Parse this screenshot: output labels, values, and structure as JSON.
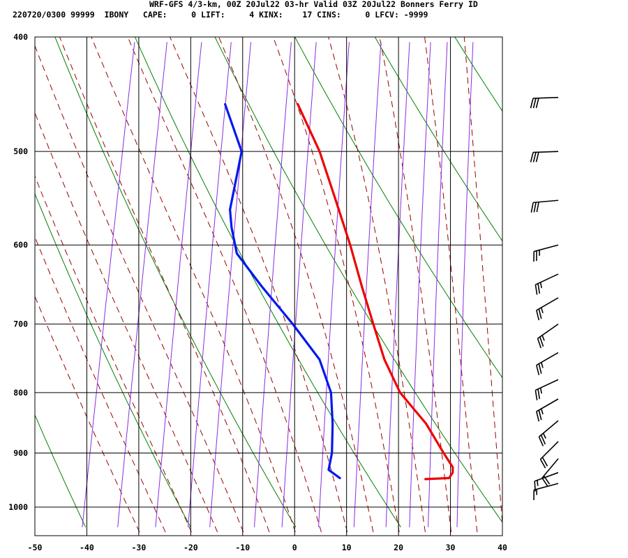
{
  "header": {
    "title": "WRF-GFS 4/3-km, 00Z 20Jul22 03-hr Valid 03Z 20Jul22 Bonners Ferry ID",
    "indices": "220720/0300 99999  IBONY   CAPE:     0 LIFT:     4 KINX:    17 CINS:     0 LFCV: -9999"
  },
  "colors": {
    "temperature": "#ee0000",
    "dewpoint": "#0018ee",
    "isotherm": "#000000",
    "dry_adiabat": "#008000",
    "moist_adiabat": "#990000",
    "mixing_ratio": "#8a2be2",
    "barb": "#000000"
  },
  "chart_data": {
    "type": "skew-t",
    "pressure_ticks": [
      400,
      500,
      600,
      700,
      800,
      900,
      1000
    ],
    "temp_ticks": [
      -50,
      -40,
      -30,
      -20,
      -10,
      0,
      10,
      20,
      30,
      40
    ],
    "xlim": [
      -50,
      40
    ],
    "ylim": [
      1040,
      400
    ],
    "y_scale": "log",
    "temperature": [
      {
        "p": 456,
        "t": -16.0
      },
      {
        "p": 500,
        "t": -10.0
      },
      {
        "p": 550,
        "t": -5.0
      },
      {
        "p": 600,
        "t": -0.5
      },
      {
        "p": 650,
        "t": 3.3
      },
      {
        "p": 700,
        "t": 7.0
      },
      {
        "p": 750,
        "t": 10.5
      },
      {
        "p": 800,
        "t": 14.8
      },
      {
        "p": 850,
        "t": 21.0
      },
      {
        "p": 900,
        "t": 25.5
      },
      {
        "p": 925,
        "t": 27.8
      },
      {
        "p": 935,
        "t": 28.0
      },
      {
        "p": 945,
        "t": 27.5
      },
      {
        "p": 947,
        "t": 23.0
      }
    ],
    "dewpoint": [
      {
        "p": 456,
        "t": -30.0
      },
      {
        "p": 500,
        "t": -25.0
      },
      {
        "p": 510,
        "t": -25.0
      },
      {
        "p": 560,
        "t": -25.0
      },
      {
        "p": 580,
        "t": -24.0
      },
      {
        "p": 610,
        "t": -22.0
      },
      {
        "p": 650,
        "t": -16.0
      },
      {
        "p": 700,
        "t": -8.5
      },
      {
        "p": 750,
        "t": -2.0
      },
      {
        "p": 800,
        "t": 1.5
      },
      {
        "p": 850,
        "t": 3.0
      },
      {
        "p": 900,
        "t": 4.0
      },
      {
        "p": 930,
        "t": 4.0
      },
      {
        "p": 945,
        "t": 6.5
      }
    ],
    "wind": [
      {
        "p": 450,
        "dir": 268,
        "spd": 30
      },
      {
        "p": 500,
        "dir": 268,
        "spd": 30
      },
      {
        "p": 550,
        "dir": 265,
        "spd": 30
      },
      {
        "p": 600,
        "dir": 255,
        "spd": 25
      },
      {
        "p": 635,
        "dir": 245,
        "spd": 25
      },
      {
        "p": 665,
        "dir": 240,
        "spd": 25
      },
      {
        "p": 700,
        "dir": 235,
        "spd": 25
      },
      {
        "p": 740,
        "dir": 240,
        "spd": 25
      },
      {
        "p": 780,
        "dir": 245,
        "spd": 25
      },
      {
        "p": 810,
        "dir": 240,
        "spd": 25
      },
      {
        "p": 845,
        "dir": 230,
        "spd": 25
      },
      {
        "p": 880,
        "dir": 225,
        "spd": 20
      },
      {
        "p": 910,
        "dir": 220,
        "spd": 20
      },
      {
        "p": 935,
        "dir": 250,
        "spd": 15
      },
      {
        "p": 955,
        "dir": 255,
        "spd": 15
      }
    ]
  }
}
